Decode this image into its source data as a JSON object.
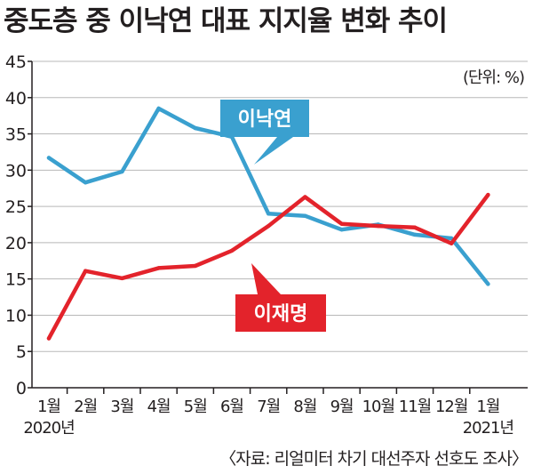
{
  "title": "중도층 중 이낙연 대표 지지율 변화 추이",
  "colors": {
    "lee_nakyon": "#3aa0cf",
    "lee_jaemyung": "#e3232b",
    "axis": "#231f20",
    "grid": "#b8b8b8"
  },
  "chart_data": {
    "type": "line",
    "title": "중도층 중 이낙연 대표 지지율 변화 추이",
    "unit_note": "(단위: %)",
    "categories": [
      "1월",
      "2월",
      "3월",
      "4월",
      "5월",
      "6월",
      "7월",
      "8월",
      "9월",
      "10월",
      "11월",
      "12월",
      "1월"
    ],
    "year_labels": [
      {
        "index": 0,
        "label": "2020년"
      },
      {
        "index": 12,
        "label": "2021년"
      }
    ],
    "y_ticks": [
      0,
      5,
      10,
      15,
      20,
      25,
      30,
      35,
      40,
      45
    ],
    "ylim": [
      0,
      45
    ],
    "grid": true,
    "series": [
      {
        "name": "이낙연",
        "color": "#3aa0cf",
        "values": [
          31.7,
          28.3,
          29.8,
          38.5,
          35.8,
          34.6,
          24.0,
          23.7,
          21.8,
          22.5,
          21.1,
          20.6,
          14.3
        ]
      },
      {
        "name": "이재명",
        "color": "#e3232b",
        "values": [
          6.8,
          16.1,
          15.1,
          16.5,
          16.8,
          18.9,
          22.3,
          26.3,
          22.6,
          22.3,
          22.1,
          19.9,
          26.6
        ]
      }
    ],
    "source": "〈자료: 리얼미터 차기 대선주자 선호도 조사〉"
  }
}
